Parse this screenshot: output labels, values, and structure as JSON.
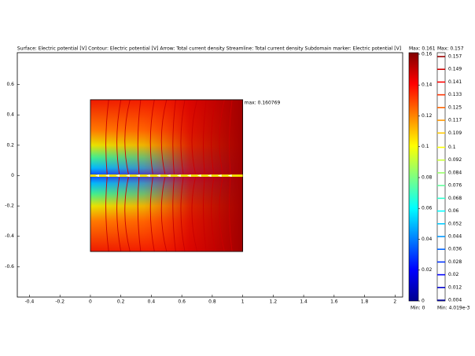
{
  "chart_data": {
    "type": "surface",
    "title": "Surface: Electric potential [V]   Contour: Electric potential [V]   Arrow: Total current density   Streamline: Total current density   Subdomain marker: Electric potential [V]",
    "xlim": [
      -0.48,
      2.05
    ],
    "ylim": [
      -0.8,
      0.81
    ],
    "xticks": [
      -0.4,
      -0.2,
      0,
      0.2,
      0.4,
      0.6,
      0.8,
      1,
      1.2,
      1.4,
      1.6,
      1.8,
      2
    ],
    "yticks": [
      -0.6,
      -0.4,
      -0.2,
      0,
      0.2,
      0.4,
      0.6
    ],
    "domain": {
      "xlim": [
        0,
        1
      ],
      "ylim": [
        -0.5,
        0.5
      ]
    },
    "annotation": "max: 0.160769",
    "colorbar": {
      "max": {
        "value": 0.161,
        "label": "Max: 0.161"
      },
      "min": {
        "value": 0,
        "label": "Min: 0"
      },
      "ticks": [
        0,
        0.02,
        0.04,
        0.06,
        0.08,
        0.1,
        0.12,
        0.14,
        0.16
      ]
    },
    "contour_bar": {
      "max": {
        "value": 0.157,
        "label": "Max: 0.157"
      },
      "min": {
        "value": 0.004019,
        "label": "Min: 4.019e-3"
      },
      "levels": [
        0.157,
        0.149,
        0.141,
        0.133,
        0.125,
        0.117,
        0.109,
        0.1,
        0.092,
        0.084,
        0.076,
        0.068,
        0.06,
        0.052,
        0.044,
        0.036,
        0.028,
        0.02,
        0.012,
        0.004
      ]
    }
  }
}
